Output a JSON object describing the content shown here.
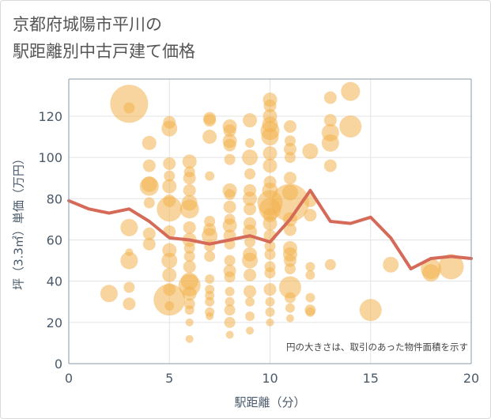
{
  "title_line1": "京都府城陽市平川の",
  "title_line2": "駅距離別中古戸建て価格",
  "chart_data": {
    "type": "scatter",
    "xlabel": "駅距離（分）",
    "ylabel": "坪（3.3㎡）単価（万円）",
    "xlim": [
      0,
      20
    ],
    "ylim": [
      0,
      138
    ],
    "xticks": [
      0,
      5,
      10,
      15,
      20
    ],
    "yticks": [
      0,
      20,
      40,
      60,
      80,
      100,
      120
    ],
    "grid": true,
    "annotation": "円の大きさは、取引のあった物件面積を示す",
    "colors": {
      "bubble": "#f2b24f",
      "line": "#d46a57",
      "plot_bg": "#ffffff",
      "grid": "#e3e3e3",
      "axis": "#8899aa"
    },
    "line_series": {
      "x": [
        0,
        1,
        2,
        3,
        4,
        5,
        6,
        7,
        8,
        9,
        10,
        11,
        12,
        13,
        14,
        15,
        16,
        17,
        18,
        19,
        20
      ],
      "values": [
        79,
        75,
        73,
        75,
        69,
        61,
        60,
        58,
        60,
        62,
        59,
        70,
        84,
        69,
        68,
        71,
        61,
        46,
        51,
        52,
        51
      ]
    },
    "bubbles": [
      {
        "x": 3,
        "y": 126,
        "s": 24
      },
      {
        "x": 3,
        "y": 124,
        "s": 7
      },
      {
        "x": 3,
        "y": 66,
        "s": 11
      },
      {
        "x": 3,
        "y": 50,
        "s": 11
      },
      {
        "x": 3,
        "y": 54,
        "s": 5
      },
      {
        "x": 3,
        "y": 37,
        "s": 7
      },
      {
        "x": 3,
        "y": 29,
        "s": 8
      },
      {
        "x": 2,
        "y": 34,
        "s": 11
      },
      {
        "x": 4,
        "y": 107,
        "s": 9
      },
      {
        "x": 4,
        "y": 96,
        "s": 8
      },
      {
        "x": 4,
        "y": 87,
        "s": 10
      },
      {
        "x": 4,
        "y": 86,
        "s": 12
      },
      {
        "x": 4,
        "y": 78,
        "s": 7
      },
      {
        "x": 4,
        "y": 63,
        "s": 8
      },
      {
        "x": 4,
        "y": 58,
        "s": 8
      },
      {
        "x": 5,
        "y": 117,
        "s": 8
      },
      {
        "x": 5,
        "y": 114,
        "s": 10
      },
      {
        "x": 5,
        "y": 97,
        "s": 8
      },
      {
        "x": 5,
        "y": 91,
        "s": 7
      },
      {
        "x": 5,
        "y": 86,
        "s": 9
      },
      {
        "x": 5,
        "y": 79,
        "s": 8
      },
      {
        "x": 5,
        "y": 75,
        "s": 16
      },
      {
        "x": 5,
        "y": 64,
        "s": 8
      },
      {
        "x": 5,
        "y": 55,
        "s": 9
      },
      {
        "x": 5,
        "y": 50,
        "s": 10
      },
      {
        "x": 5,
        "y": 43,
        "s": 9
      },
      {
        "x": 5,
        "y": 36,
        "s": 8
      },
      {
        "x": 5,
        "y": 31,
        "s": 20
      },
      {
        "x": 5,
        "y": 28,
        "s": 6
      },
      {
        "x": 6,
        "y": 98,
        "s": 9
      },
      {
        "x": 6,
        "y": 93,
        "s": 7
      },
      {
        "x": 6,
        "y": 90,
        "s": 8
      },
      {
        "x": 6,
        "y": 84,
        "s": 8
      },
      {
        "x": 6,
        "y": 78,
        "s": 10
      },
      {
        "x": 6,
        "y": 75,
        "s": 12
      },
      {
        "x": 6,
        "y": 66,
        "s": 8
      },
      {
        "x": 6,
        "y": 60,
        "s": 9
      },
      {
        "x": 6,
        "y": 56,
        "s": 7
      },
      {
        "x": 6,
        "y": 52,
        "s": 7
      },
      {
        "x": 6,
        "y": 47,
        "s": 8
      },
      {
        "x": 6,
        "y": 40,
        "s": 11
      },
      {
        "x": 6,
        "y": 38,
        "s": 14
      },
      {
        "x": 6,
        "y": 34,
        "s": 9
      },
      {
        "x": 6,
        "y": 29,
        "s": 7
      },
      {
        "x": 6,
        "y": 26,
        "s": 6
      },
      {
        "x": 6,
        "y": 20,
        "s": 5
      },
      {
        "x": 6,
        "y": 12,
        "s": 5
      },
      {
        "x": 7,
        "y": 119,
        "s": 8
      },
      {
        "x": 7,
        "y": 118,
        "s": 8
      },
      {
        "x": 7,
        "y": 110,
        "s": 9
      },
      {
        "x": 7,
        "y": 91,
        "s": 6
      },
      {
        "x": 7,
        "y": 69,
        "s": 7
      },
      {
        "x": 7,
        "y": 65,
        "s": 8
      },
      {
        "x": 7,
        "y": 62,
        "s": 10
      },
      {
        "x": 7,
        "y": 57,
        "s": 7
      },
      {
        "x": 7,
        "y": 52,
        "s": 7
      },
      {
        "x": 7,
        "y": 41,
        "s": 6
      },
      {
        "x": 7,
        "y": 36,
        "s": 6
      },
      {
        "x": 7,
        "y": 33,
        "s": 6
      },
      {
        "x": 7,
        "y": 30,
        "s": 6
      },
      {
        "x": 7,
        "y": 25,
        "s": 6
      },
      {
        "x": 7,
        "y": 23,
        "s": 5
      },
      {
        "x": 8,
        "y": 115,
        "s": 9
      },
      {
        "x": 8,
        "y": 113,
        "s": 8
      },
      {
        "x": 8,
        "y": 108,
        "s": 9
      },
      {
        "x": 8,
        "y": 106,
        "s": 8
      },
      {
        "x": 8,
        "y": 99,
        "s": 7
      },
      {
        "x": 8,
        "y": 84,
        "s": 9
      },
      {
        "x": 8,
        "y": 82,
        "s": 7
      },
      {
        "x": 8,
        "y": 76,
        "s": 8
      },
      {
        "x": 8,
        "y": 70,
        "s": 7
      },
      {
        "x": 8,
        "y": 67,
        "s": 9
      },
      {
        "x": 8,
        "y": 62,
        "s": 8
      },
      {
        "x": 8,
        "y": 58,
        "s": 7
      },
      {
        "x": 8,
        "y": 50,
        "s": 7
      },
      {
        "x": 8,
        "y": 45,
        "s": 8
      },
      {
        "x": 8,
        "y": 42,
        "s": 7
      },
      {
        "x": 8,
        "y": 35,
        "s": 6
      },
      {
        "x": 8,
        "y": 30,
        "s": 6
      },
      {
        "x": 8,
        "y": 26,
        "s": 7
      },
      {
        "x": 8,
        "y": 20,
        "s": 7
      },
      {
        "x": 8,
        "y": 14,
        "s": 5
      },
      {
        "x": 9,
        "y": 118,
        "s": 9
      },
      {
        "x": 9,
        "y": 107,
        "s": 6
      },
      {
        "x": 9,
        "y": 100,
        "s": 10
      },
      {
        "x": 9,
        "y": 92,
        "s": 7
      },
      {
        "x": 9,
        "y": 84,
        "s": 8
      },
      {
        "x": 9,
        "y": 80,
        "s": 9
      },
      {
        "x": 9,
        "y": 75,
        "s": 8
      },
      {
        "x": 9,
        "y": 68,
        "s": 8
      },
      {
        "x": 9,
        "y": 64,
        "s": 9
      },
      {
        "x": 9,
        "y": 59,
        "s": 7
      },
      {
        "x": 9,
        "y": 53,
        "s": 9
      },
      {
        "x": 9,
        "y": 50,
        "s": 10
      },
      {
        "x": 9,
        "y": 43,
        "s": 8
      },
      {
        "x": 9,
        "y": 35,
        "s": 8
      },
      {
        "x": 9,
        "y": 30,
        "s": 6
      },
      {
        "x": 9,
        "y": 23,
        "s": 6
      },
      {
        "x": 9,
        "y": 16,
        "s": 5
      },
      {
        "x": 10,
        "y": 128,
        "s": 9
      },
      {
        "x": 10,
        "y": 125,
        "s": 8
      },
      {
        "x": 10,
        "y": 120,
        "s": 9
      },
      {
        "x": 10,
        "y": 116,
        "s": 10
      },
      {
        "x": 10,
        "y": 113,
        "s": 12
      },
      {
        "x": 10,
        "y": 110,
        "s": 11
      },
      {
        "x": 10,
        "y": 102,
        "s": 9
      },
      {
        "x": 10,
        "y": 96,
        "s": 9
      },
      {
        "x": 10,
        "y": 88,
        "s": 8
      },
      {
        "x": 10,
        "y": 84,
        "s": 10
      },
      {
        "x": 10,
        "y": 78,
        "s": 16
      },
      {
        "x": 10,
        "y": 75,
        "s": 14
      },
      {
        "x": 10,
        "y": 72,
        "s": 9
      },
      {
        "x": 10,
        "y": 68,
        "s": 9
      },
      {
        "x": 10,
        "y": 62,
        "s": 8
      },
      {
        "x": 10,
        "y": 57,
        "s": 7
      },
      {
        "x": 10,
        "y": 53,
        "s": 7
      },
      {
        "x": 10,
        "y": 47,
        "s": 7
      },
      {
        "x": 10,
        "y": 44,
        "s": 7
      },
      {
        "x": 10,
        "y": 36,
        "s": 8
      },
      {
        "x": 10,
        "y": 30,
        "s": 6
      },
      {
        "x": 10,
        "y": 25,
        "s": 6
      },
      {
        "x": 10,
        "y": 20,
        "s": 5
      },
      {
        "x": 11,
        "y": 115,
        "s": 8
      },
      {
        "x": 11,
        "y": 108,
        "s": 7
      },
      {
        "x": 11,
        "y": 104,
        "s": 8
      },
      {
        "x": 11,
        "y": 100,
        "s": 7
      },
      {
        "x": 11,
        "y": 90,
        "s": 8
      },
      {
        "x": 11,
        "y": 83,
        "s": 10
      },
      {
        "x": 11,
        "y": 78,
        "s": 24
      },
      {
        "x": 11,
        "y": 70,
        "s": 9
      },
      {
        "x": 11,
        "y": 65,
        "s": 8
      },
      {
        "x": 11,
        "y": 56,
        "s": 9
      },
      {
        "x": 11,
        "y": 53,
        "s": 9
      },
      {
        "x": 11,
        "y": 50,
        "s": 8
      },
      {
        "x": 11,
        "y": 46,
        "s": 7
      },
      {
        "x": 11,
        "y": 37,
        "s": 14
      },
      {
        "x": 11,
        "y": 32,
        "s": 7
      },
      {
        "x": 11,
        "y": 27,
        "s": 6
      },
      {
        "x": 11,
        "y": 22,
        "s": 5
      },
      {
        "x": 12,
        "y": 103,
        "s": 10
      },
      {
        "x": 12,
        "y": 79,
        "s": 8
      },
      {
        "x": 12,
        "y": 72,
        "s": 8
      },
      {
        "x": 12,
        "y": 47,
        "s": 6
      },
      {
        "x": 12,
        "y": 43,
        "s": 6
      },
      {
        "x": 12,
        "y": 32,
        "s": 6
      },
      {
        "x": 12,
        "y": 26,
        "s": 7
      },
      {
        "x": 12,
        "y": 25,
        "s": 6
      },
      {
        "x": 13,
        "y": 129,
        "s": 8
      },
      {
        "x": 13,
        "y": 118,
        "s": 8
      },
      {
        "x": 13,
        "y": 112,
        "s": 11
      },
      {
        "x": 13,
        "y": 107,
        "s": 11
      },
      {
        "x": 13,
        "y": 96,
        "s": 8
      },
      {
        "x": 13,
        "y": 48,
        "s": 7
      },
      {
        "x": 14,
        "y": 132,
        "s": 12
      },
      {
        "x": 14,
        "y": 115,
        "s": 14
      },
      {
        "x": 15,
        "y": 26,
        "s": 14
      },
      {
        "x": 16,
        "y": 48,
        "s": 10
      },
      {
        "x": 18,
        "y": 46,
        "s": 13
      },
      {
        "x": 18,
        "y": 44,
        "s": 11
      },
      {
        "x": 19,
        "y": 47,
        "s": 16
      }
    ]
  }
}
